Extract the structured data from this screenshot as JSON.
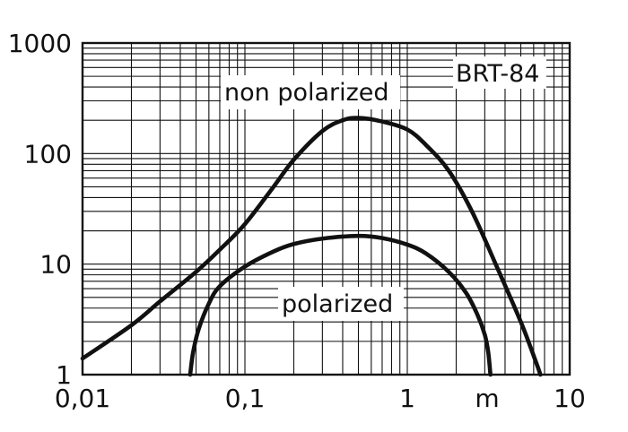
{
  "chart_data": {
    "type": "line",
    "title": "",
    "xlabel": "",
    "ylabel": "",
    "x_scale": "log",
    "y_scale": "log",
    "xlim": [
      0.01,
      10
    ],
    "ylim": [
      1,
      1000
    ],
    "x_tick_labels": [
      "0,01",
      "0,1",
      "1",
      "m",
      "10"
    ],
    "y_tick_labels": [
      "1",
      "10",
      "100",
      "1000"
    ],
    "grid": true,
    "series": [
      {
        "name": "non polarized",
        "color": "#111111",
        "points": [
          [
            0.01,
            1.4
          ],
          [
            0.02,
            2.8
          ],
          [
            0.03,
            4.6
          ],
          [
            0.05,
            8.5
          ],
          [
            0.07,
            13.5
          ],
          [
            0.1,
            23
          ],
          [
            0.15,
            50
          ],
          [
            0.2,
            88
          ],
          [
            0.3,
            160
          ],
          [
            0.4,
            200
          ],
          [
            0.5,
            210
          ],
          [
            0.7,
            195
          ],
          [
            1.0,
            165
          ],
          [
            1.3,
            120
          ],
          [
            1.8,
            70
          ],
          [
            2.5,
            30
          ],
          [
            3.5,
            10
          ],
          [
            5.0,
            3.0
          ],
          [
            6.2,
            1.3
          ],
          [
            6.6,
            1.0
          ]
        ]
      },
      {
        "name": "polarized",
        "color": "#111111",
        "points": [
          [
            0.046,
            1.0
          ],
          [
            0.048,
            1.6
          ],
          [
            0.052,
            2.6
          ],
          [
            0.06,
            4.4
          ],
          [
            0.07,
            6.3
          ],
          [
            0.1,
            9.5
          ],
          [
            0.15,
            13
          ],
          [
            0.2,
            15.2
          ],
          [
            0.3,
            17
          ],
          [
            0.5,
            18
          ],
          [
            0.7,
            17.2
          ],
          [
            1.0,
            15
          ],
          [
            1.3,
            12.5
          ],
          [
            1.8,
            8.5
          ],
          [
            2.3,
            5.5
          ],
          [
            2.7,
            3.5
          ],
          [
            3.0,
            2.3
          ],
          [
            3.15,
            1.6
          ],
          [
            3.25,
            1.0
          ]
        ]
      }
    ],
    "annotations": {
      "model": "BRT-84",
      "upper_curve_label": "non polarized",
      "lower_curve_label": "polarized"
    }
  }
}
